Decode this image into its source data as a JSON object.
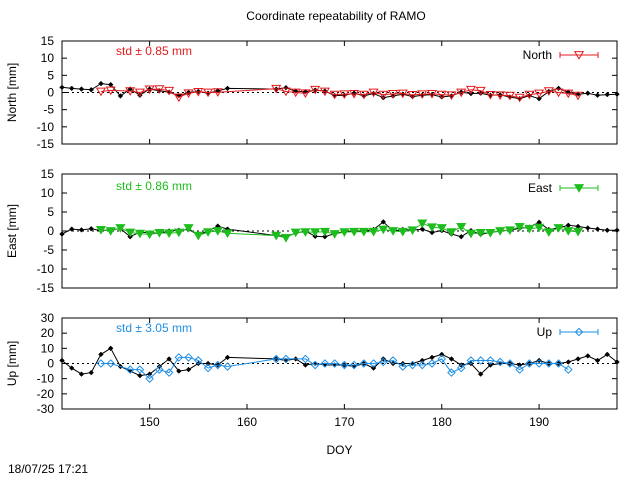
{
  "title": "Coordinate repeatability of RAMO",
  "timestamp": "18/07/25 17:21",
  "colors": {
    "north": "#e41a1c",
    "east": "#1ebd1e",
    "up": "#1e8fe6",
    "reference": "#000000"
  },
  "chart_data": [
    {
      "type": "line",
      "name": "north",
      "ylabel": "North [mm]",
      "xlabel": "",
      "xlim": [
        141,
        198
      ],
      "ylim": [
        -15,
        15
      ],
      "yticks": [
        -15,
        -10,
        -5,
        0,
        5,
        10,
        15
      ],
      "ytick_labels": [
        "-15",
        "-10",
        "-5",
        "0",
        "5",
        "10",
        "15"
      ],
      "std_label": "std ± 0.85 mm",
      "legend_label": "North",
      "legend_position": "top-right",
      "marker": "triangle-down-open",
      "series": [
        {
          "name": "reference",
          "x": [
            141,
            142,
            143,
            144,
            145,
            146,
            147,
            148,
            149,
            150,
            151,
            152,
            153,
            154,
            155,
            156,
            157,
            158,
            163,
            164,
            165,
            166,
            167,
            168,
            169,
            170,
            171,
            172,
            173,
            174,
            175,
            176,
            177,
            178,
            179,
            180,
            181,
            182,
            183,
            184,
            185,
            186,
            187,
            188,
            189,
            190,
            191,
            192,
            193,
            194,
            195,
            196,
            197,
            198
          ],
          "y": [
            1.5,
            1.2,
            1.0,
            0.8,
            2.6,
            2.3,
            -1.0,
            1.0,
            -0.8,
            1.0,
            0.5,
            0.1,
            -0.9,
            0.0,
            0.3,
            -0.2,
            0.5,
            1.2,
            1.0,
            1.4,
            0.4,
            0.2,
            0.7,
            0.4,
            -0.9,
            -0.8,
            -0.2,
            -1.0,
            -0.3,
            -1.5,
            -1.0,
            -0.5,
            -1.2,
            -0.8,
            -0.6,
            -1.3,
            -1.0,
            0.1,
            -0.3,
            -0.2,
            -0.8,
            -0.7,
            -1.3,
            -1.8,
            -0.9,
            -1.8,
            0.3,
            1.2,
            0.1,
            -0.5,
            -0.2,
            -0.8,
            -0.6,
            -0.5
          ]
        },
        {
          "name": "north",
          "x": [
            145,
            146,
            148,
            149,
            150,
            151,
            152,
            153,
            154,
            155,
            156,
            157,
            163,
            164,
            165,
            166,
            167,
            168,
            169,
            170,
            171,
            172,
            173,
            174,
            175,
            176,
            177,
            178,
            179,
            180,
            181,
            182,
            183,
            184,
            185,
            186,
            187,
            188,
            189,
            190,
            191,
            192,
            193,
            194
          ],
          "y": [
            0.3,
            0.6,
            0.4,
            0.0,
            0.9,
            1.0,
            0.5,
            -1.4,
            -0.2,
            0.2,
            0.0,
            0.1,
            1.1,
            0.3,
            0.0,
            -0.2,
            0.8,
            0.3,
            -0.6,
            -0.5,
            -0.4,
            -0.6,
            0.0,
            -0.6,
            -0.4,
            -0.3,
            -0.7,
            -0.5,
            -0.4,
            -0.6,
            -0.8,
            0.0,
            0.8,
            0.5,
            -0.7,
            -0.8,
            -0.9,
            -1.5,
            -0.6,
            -0.3,
            0.4,
            0.0,
            -0.3,
            -0.9
          ]
        }
      ]
    },
    {
      "type": "line",
      "name": "east",
      "ylabel": "East [mm]",
      "xlabel": "",
      "xlim": [
        141,
        198
      ],
      "ylim": [
        -15,
        15
      ],
      "yticks": [
        -15,
        -10,
        -5,
        0,
        5,
        10,
        15
      ],
      "ytick_labels": [
        "-15",
        "-10",
        "-5",
        "0",
        "5",
        "10",
        "15"
      ],
      "std_label": "std ± 0.86 mm",
      "legend_label": "East",
      "legend_position": "top-right",
      "marker": "triangle-down-filled",
      "series": [
        {
          "name": "reference",
          "x": [
            141,
            142,
            143,
            144,
            145,
            146,
            147,
            148,
            149,
            150,
            151,
            152,
            153,
            154,
            155,
            156,
            157,
            158,
            163,
            164,
            165,
            166,
            167,
            168,
            169,
            170,
            171,
            172,
            173,
            174,
            175,
            176,
            177,
            178,
            179,
            180,
            181,
            182,
            183,
            184,
            185,
            186,
            187,
            188,
            189,
            190,
            191,
            192,
            193,
            194,
            195,
            196,
            197,
            198
          ],
          "y": [
            -0.8,
            0.5,
            0.3,
            0.6,
            0.1,
            0.3,
            0.6,
            -1.5,
            -0.3,
            -0.5,
            -0.6,
            0.0,
            0.2,
            0.4,
            -1.0,
            0.0,
            1.3,
            0.5,
            -1.2,
            -1.4,
            -0.6,
            0.0,
            -1.4,
            -1.5,
            -0.7,
            -0.1,
            0.0,
            0.0,
            0.4,
            2.4,
            0.0,
            0.4,
            0.2,
            0.5,
            -0.4,
            0.1,
            -0.8,
            -1.5,
            0.1,
            -0.9,
            -0.4,
            0.0,
            0.2,
            0.7,
            1.0,
            2.3,
            0.4,
            0.8,
            1.5,
            1.2,
            0.8,
            0.5,
            0.2,
            0.2
          ]
        },
        {
          "name": "east",
          "x": [
            145,
            146,
            147,
            148,
            149,
            150,
            151,
            152,
            153,
            154,
            155,
            156,
            157,
            158,
            163,
            164,
            165,
            166,
            167,
            168,
            169,
            170,
            171,
            172,
            173,
            174,
            175,
            176,
            177,
            178,
            179,
            180,
            181,
            182,
            183,
            184,
            185,
            186,
            187,
            188,
            189,
            190,
            191,
            192,
            193,
            194
          ],
          "y": [
            0.3,
            0.0,
            0.8,
            -0.4,
            -0.7,
            -0.9,
            -0.5,
            -0.6,
            -0.4,
            0.8,
            -1.2,
            -0.3,
            0.0,
            -0.6,
            -1.2,
            -1.8,
            -0.4,
            -0.3,
            -0.3,
            -0.2,
            -0.8,
            -0.3,
            -0.2,
            -0.2,
            -0.2,
            0.4,
            0.0,
            -0.2,
            0.2,
            2.0,
            1.0,
            0.8,
            -0.3,
            1.1,
            -0.7,
            -0.5,
            -0.5,
            0.0,
            0.2,
            1.1,
            0.6,
            0.9,
            -0.3,
            0.8,
            0.0,
            -0.2
          ]
        }
      ]
    },
    {
      "type": "line",
      "name": "up",
      "ylabel": "Up [mm]",
      "xlabel": "DOY",
      "xlim": [
        141,
        198
      ],
      "ylim": [
        -30,
        30
      ],
      "yticks": [
        -30,
        -20,
        -10,
        0,
        10,
        20,
        30
      ],
      "ytick_labels": [
        "-30",
        "-20",
        "-10",
        "0",
        "10",
        "20",
        "30"
      ],
      "xticks": [
        150,
        160,
        170,
        180,
        190
      ],
      "xtick_labels": [
        "150",
        "160",
        "170",
        "180",
        "190"
      ],
      "std_label": "std ± 3.05 mm",
      "legend_label": "Up",
      "legend_position": "top-right",
      "marker": "diamond-open",
      "series": [
        {
          "name": "reference",
          "x": [
            141,
            142,
            143,
            144,
            145,
            146,
            147,
            148,
            149,
            150,
            151,
            152,
            153,
            154,
            155,
            156,
            157,
            158,
            163,
            164,
            165,
            166,
            167,
            168,
            169,
            170,
            171,
            172,
            173,
            174,
            175,
            176,
            177,
            178,
            179,
            180,
            181,
            182,
            183,
            184,
            185,
            186,
            187,
            188,
            189,
            190,
            191,
            192,
            193,
            194,
            195,
            196,
            197,
            198
          ],
          "y": [
            2,
            -3,
            -7,
            -6,
            6,
            10,
            -2,
            -5,
            -8,
            -7,
            -2,
            3,
            -5,
            -4,
            0,
            0,
            -1,
            4,
            3,
            2,
            3,
            -1,
            0,
            -1,
            -1,
            -1,
            -2,
            0,
            -3,
            3,
            0,
            0,
            0,
            2,
            4,
            6,
            3,
            -1,
            0,
            -7,
            -1,
            0,
            0,
            -1,
            0,
            2,
            0,
            0,
            1,
            3,
            5,
            2,
            6,
            1
          ]
        },
        {
          "name": "up",
          "x": [
            145,
            146,
            148,
            149,
            150,
            151,
            152,
            153,
            154,
            155,
            156,
            157,
            158,
            163,
            164,
            166,
            167,
            168,
            169,
            170,
            171,
            172,
            173,
            174,
            175,
            176,
            177,
            178,
            179,
            180,
            181,
            182,
            183,
            184,
            185,
            186,
            187,
            188,
            189,
            190,
            191,
            192,
            193
          ],
          "y": [
            0,
            0,
            -4,
            -4,
            -10,
            -4,
            -6,
            4,
            4,
            2,
            -3,
            -1,
            -2,
            3,
            3,
            3,
            -1,
            0,
            0,
            -1,
            -1,
            0,
            0,
            1,
            2,
            -2,
            -1,
            -1,
            0,
            3,
            -6,
            -3,
            2,
            2,
            2,
            1,
            0,
            -4,
            0,
            0,
            0,
            0,
            -4
          ]
        }
      ]
    }
  ]
}
